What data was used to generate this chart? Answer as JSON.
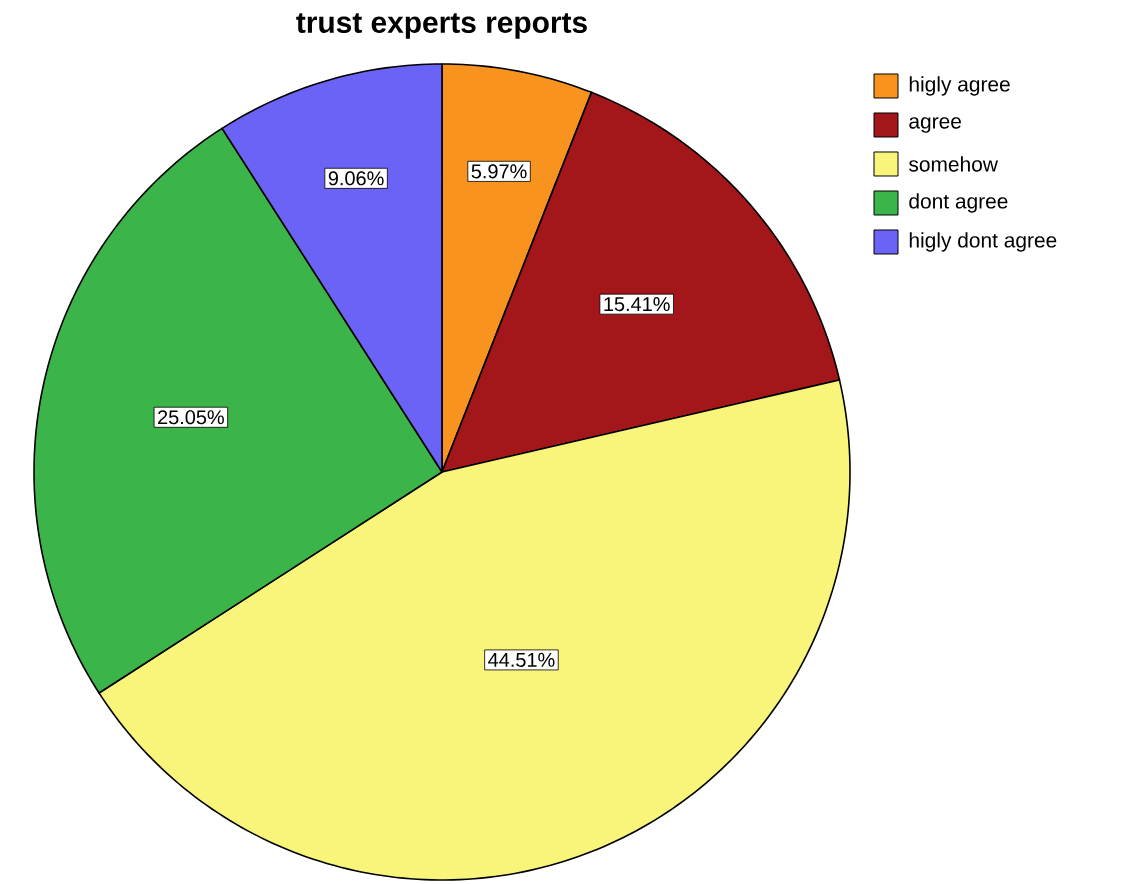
{
  "chart_data": {
    "type": "pie",
    "title": "trust experts reports",
    "categories": [
      "higly agree",
      "agree",
      "somehow",
      "dont agree",
      "higly dont agree"
    ],
    "values": [
      5.97,
      15.41,
      44.51,
      25.05,
      9.06
    ],
    "value_labels": [
      "5.97%",
      "15.41%",
      "44.51%",
      "25.05%",
      "9.06%"
    ],
    "colors": [
      "#f7931e",
      "#a3161a",
      "#f8f57a",
      "#3bb54a",
      "#6b63f5"
    ],
    "legend": "top right"
  }
}
